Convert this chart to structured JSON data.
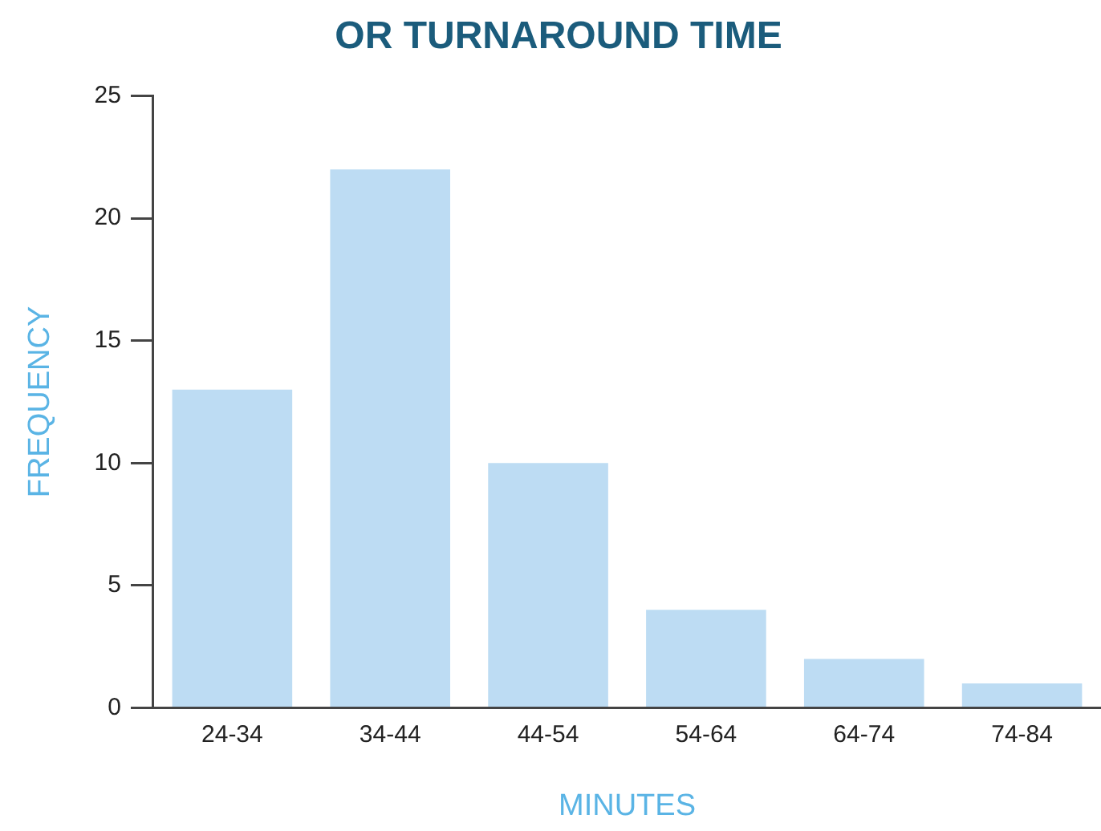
{
  "chart_data": {
    "type": "bar",
    "title": "OR TURNAROUND TIME",
    "xlabel": "MINUTES",
    "ylabel": "FREQUENCY",
    "categories": [
      "24-34",
      "34-44",
      "44-54",
      "54-64",
      "64-74",
      "74-84"
    ],
    "values": [
      13,
      22,
      10,
      4,
      2,
      1
    ],
    "color": "#bddcf3",
    "ylim": [
      0,
      25
    ],
    "yticks": [
      0,
      5,
      10,
      15,
      20,
      25
    ]
  }
}
